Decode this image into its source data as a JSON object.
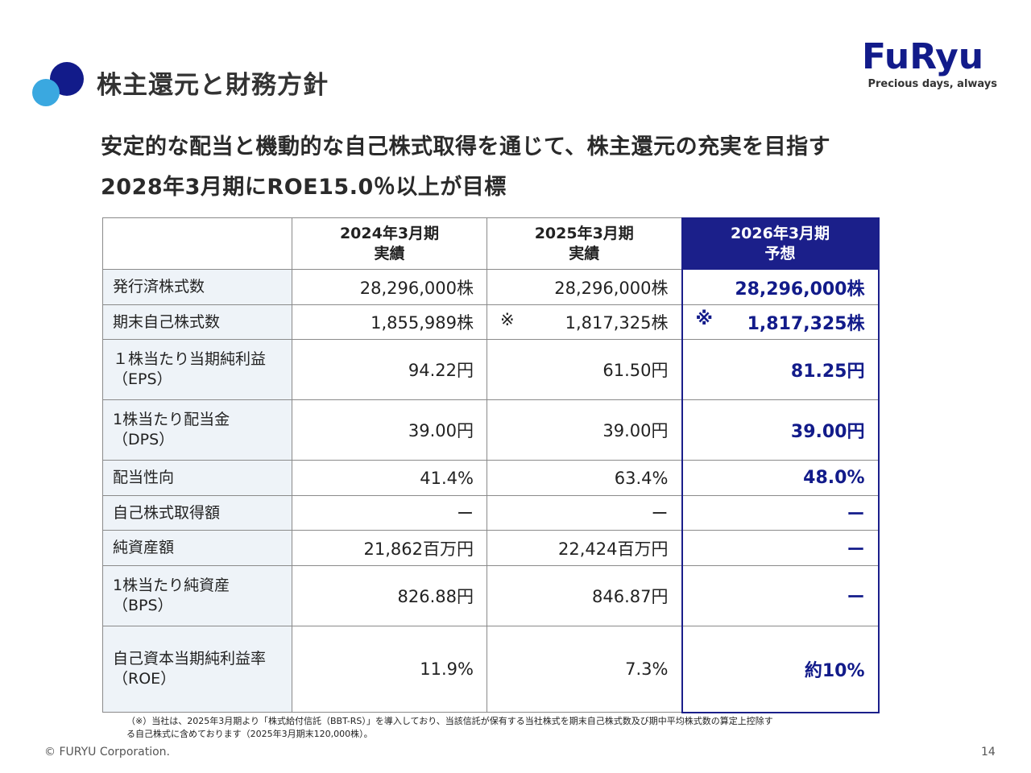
{
  "header": {
    "title": "株主還元と財務方針",
    "logo_text": "FuRyu",
    "logo_tagline": "Precious days, always"
  },
  "headlines": [
    "安定的な配当と機動的な自己株式取得を通じて、株主還元の充実を目指す",
    "2028年3月期にROE15.0％以上が目標"
  ],
  "table": {
    "columns": [
      {
        "line1": "",
        "line2": ""
      },
      {
        "line1": "2024年3月期",
        "line2": "実績"
      },
      {
        "line1": "2025年3月期",
        "line2": "実績"
      },
      {
        "line1": "2026年3月期",
        "line2": "予想"
      }
    ],
    "rows": [
      {
        "label1": "発行済株式数",
        "label2": "",
        "v2024": "28,296,000株",
        "v2025": "28,296,000株",
        "v2026": "28,296,000株",
        "mark2025": "",
        "mark2026": ""
      },
      {
        "label1": "期末自己株式数",
        "label2": "",
        "v2024": "1,855,989株",
        "v2025": "1,817,325株",
        "v2026": "1,817,325株",
        "mark2025": "※",
        "mark2026": "※"
      },
      {
        "label1": "１株当たり当期純利益",
        "label2": "（EPS）",
        "v2024": "94.22円",
        "v2025": "61.50円",
        "v2026": "81.25円",
        "mark2025": "",
        "mark2026": ""
      },
      {
        "label1": "1株当たり配当金",
        "label2": "（DPS）",
        "v2024": "39.00円",
        "v2025": "39.00円",
        "v2026": "39.00円",
        "mark2025": "",
        "mark2026": ""
      },
      {
        "label1": "配当性向",
        "label2": "",
        "v2024": "41.4%",
        "v2025": "63.4%",
        "v2026": "48.0%",
        "mark2025": "",
        "mark2026": ""
      },
      {
        "label1": "自己株式取得額",
        "label2": "",
        "v2024": "ー",
        "v2025": "ー",
        "v2026": "ー",
        "mark2025": "",
        "mark2026": ""
      },
      {
        "label1": "純資産額",
        "label2": "",
        "v2024": "21,862百万円",
        "v2025": "22,424百万円",
        "v2026": "ー",
        "mark2025": "",
        "mark2026": ""
      },
      {
        "label1": "1株当たり純資産",
        "label2": "（BPS）",
        "v2024": "826.88円",
        "v2025": "846.87円",
        "v2026": "ー",
        "mark2025": "",
        "mark2026": ""
      },
      {
        "label1": "自己資本当期純利益率",
        "label2": "（ROE）",
        "v2024": "11.9%",
        "v2025": "7.3%",
        "v2026": "約10%",
        "mark2025": "",
        "mark2026": ""
      }
    ]
  },
  "footnote": {
    "line1": "（※）当社は、2025年3月期より「株式給付信託（BBT-RS）」を導入しており、当該信託が保有する当社株式を期末自己株式数及び期中平均株式数の算定上控除す",
    "line2": "る自己株式に含めております（2025年3月期末120,000株）。"
  },
  "footer": {
    "copyright": "© FURYU Corporation.",
    "page_number": "14"
  },
  "colors": {
    "brand_navy": "#121b8a",
    "accent_blue": "#3aa8e0",
    "label_bg": "#eef3f8"
  }
}
